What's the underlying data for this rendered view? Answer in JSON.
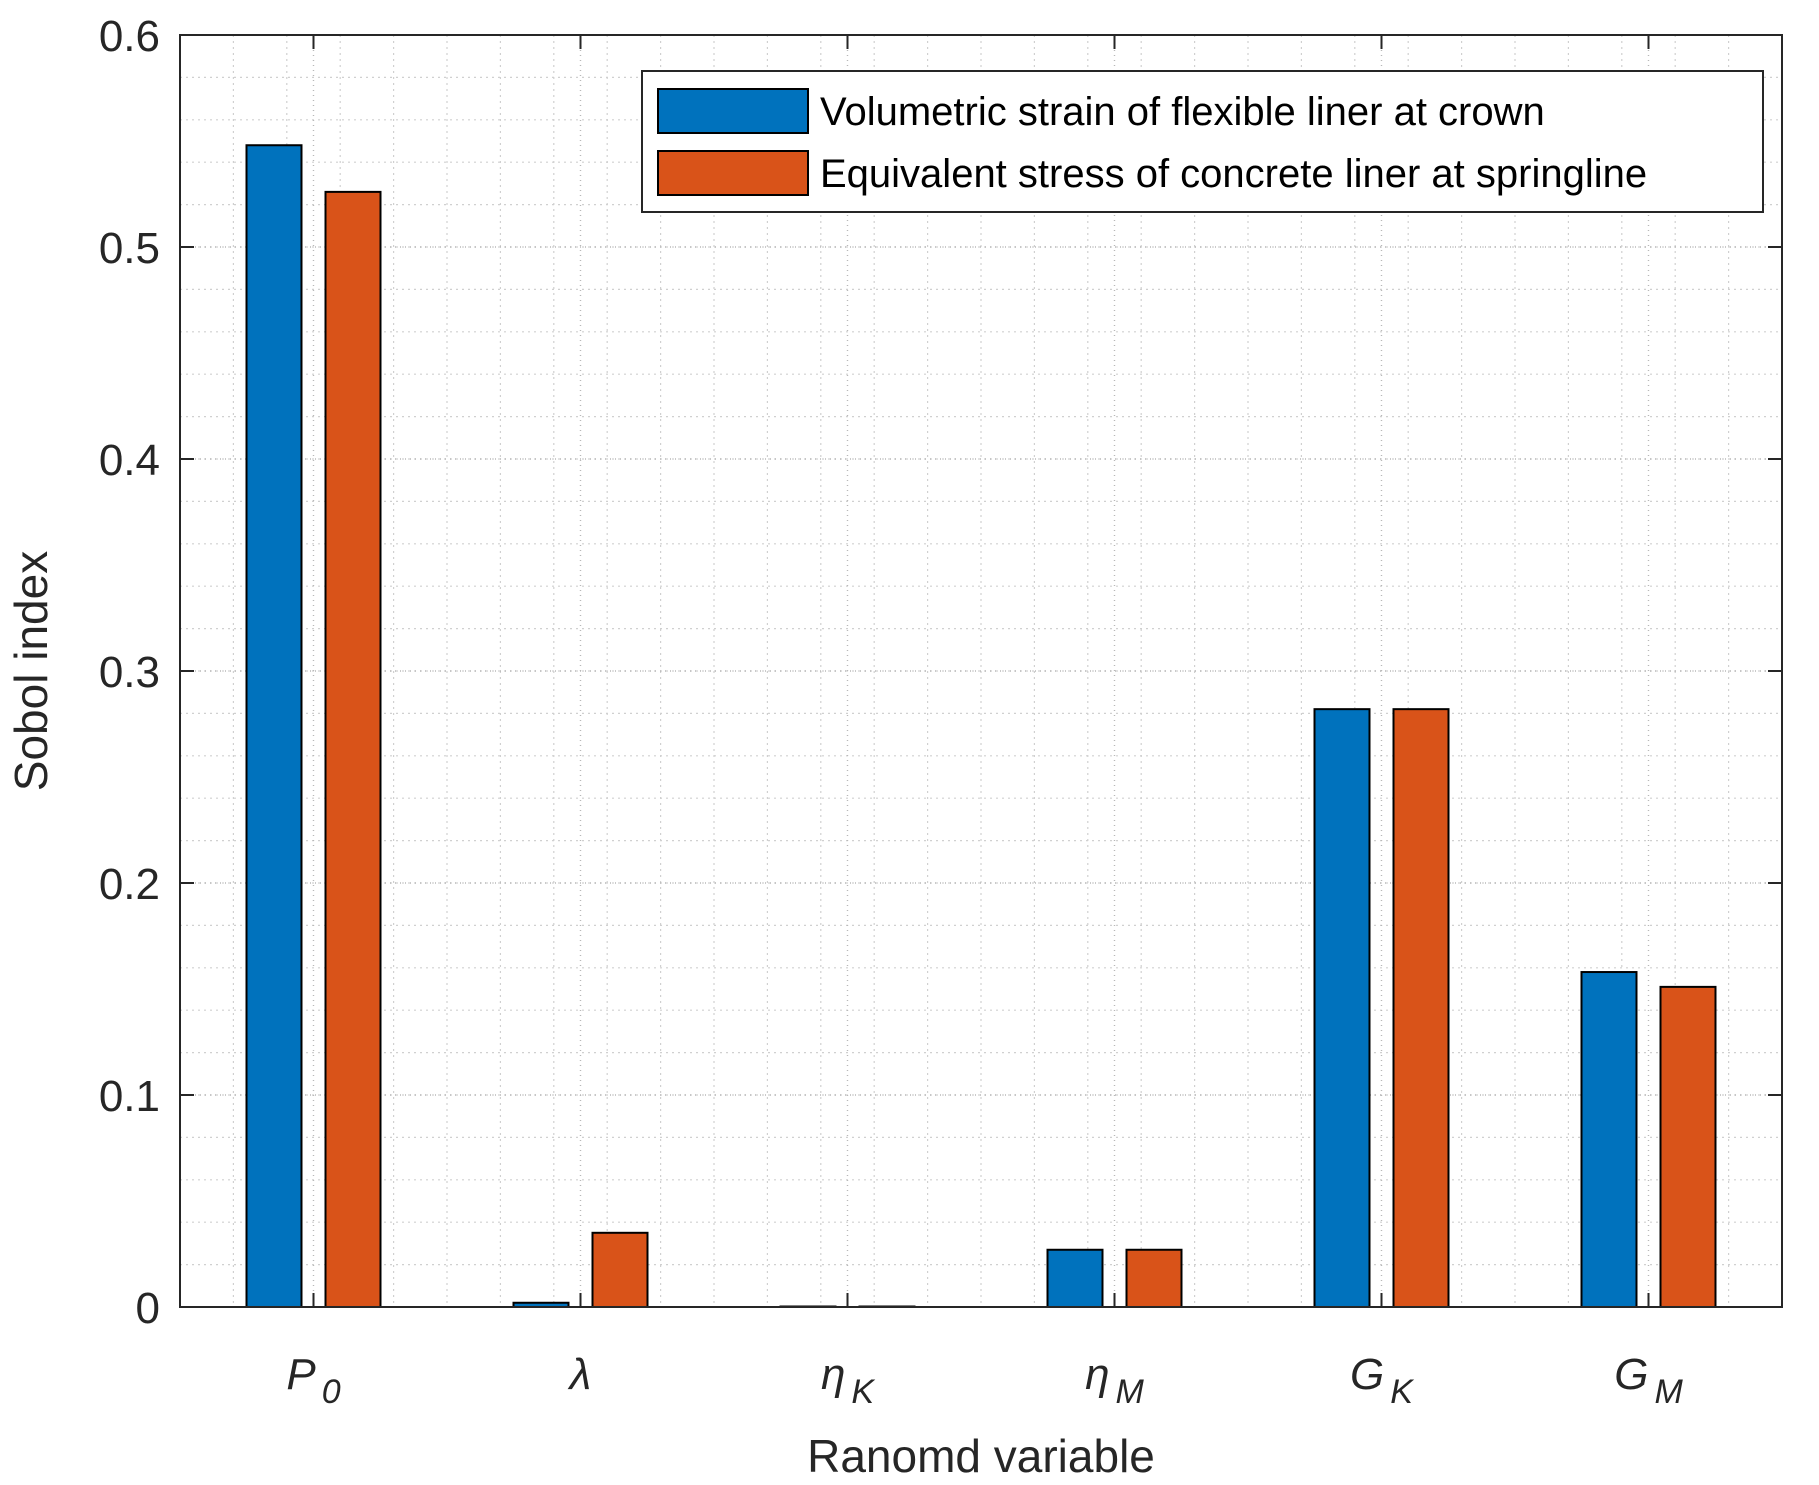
{
  "chart_data": {
    "type": "bar",
    "title": "",
    "xlabel": "Ranomd variable",
    "ylabel": "Sobol index",
    "ylim": [
      0,
      0.6
    ],
    "yticks": [
      0,
      0.1,
      0.2,
      0.3,
      0.4,
      0.5,
      0.6
    ],
    "ytick_labels": [
      "0",
      "0.1",
      "0.2",
      "0.3",
      "0.4",
      "0.5",
      "0.6"
    ],
    "grid": true,
    "minor_grid": true,
    "legend_position": "top-right",
    "categories": [
      {
        "base": "P",
        "sub": "0"
      },
      {
        "base": "λ",
        "sub": ""
      },
      {
        "base": "η",
        "sub": "K"
      },
      {
        "base": "η",
        "sub": "M"
      },
      {
        "base": "G",
        "sub": "K"
      },
      {
        "base": "G",
        "sub": "M"
      }
    ],
    "series": [
      {
        "name": "Volumetric strain of flexible liner at crown",
        "color": "#0072bd",
        "values": [
          0.548,
          0.002,
          0.0,
          0.027,
          0.282,
          0.158
        ]
      },
      {
        "name": "Equivalent stress of concrete liner at springline",
        "color": "#d95319",
        "values": [
          0.526,
          0.035,
          0.0,
          0.027,
          0.282,
          0.151
        ]
      }
    ]
  }
}
